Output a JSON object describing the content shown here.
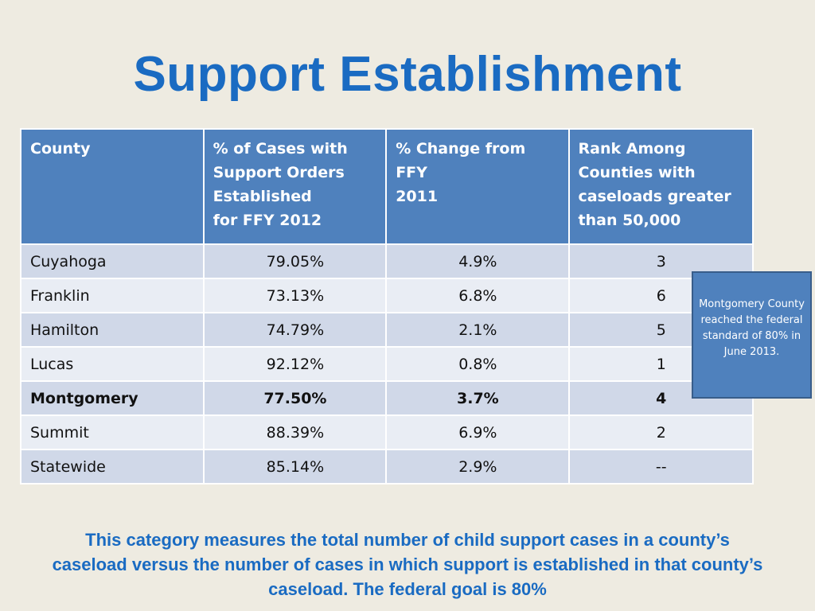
{
  "title": "Support Establishment",
  "table": {
    "headers": [
      "County",
      "% of Cases with Support Orders Established\nfor FFY 2012",
      "% Change from FFY 2011",
      "Rank Among Counties with caseloads greater than 50,000"
    ],
    "header_lines": [
      [
        "County"
      ],
      [
        "% of Cases with",
        "Support Orders",
        "Established",
        "for FFY 2012"
      ],
      [
        "% Change from FFY",
        "2011"
      ],
      [
        "Rank Among",
        "Counties with",
        "caseloads greater",
        "than 50,000"
      ]
    ],
    "rows": [
      {
        "county": "Cuyahoga",
        "pct": "79.05%",
        "change": "4.9%",
        "rank": "3"
      },
      {
        "county": "Franklin",
        "pct": "73.13%",
        "change": "6.8%",
        "rank": "6"
      },
      {
        "county": "Hamilton",
        "pct": "74.79%",
        "change": "2.1%",
        "rank": "5"
      },
      {
        "county": "Lucas",
        "pct": "92.12%",
        "change": "0.8%",
        "rank": "1"
      },
      {
        "county": "Montgomery",
        "pct": "77.50%",
        "change": "3.7%",
        "rank": "4"
      },
      {
        "county": "Summit",
        "pct": "88.39%",
        "change": "6.9%",
        "rank": "2"
      },
      {
        "county": "Statewide",
        "pct": "85.14%",
        "change": "2.9%",
        "rank": "--"
      }
    ]
  },
  "callout": "Montgomery County  reached the federal standard of 80% in June 2013.",
  "footnote": "This category measures the total number of child support cases in a county’s caseload  versus the number of cases in which support is established in that county’s caseload. The federal goal is 80%",
  "colors": {
    "title": "#1a6bc2",
    "header_bg": "#4f81bd",
    "row_odd": "#d0d8e8",
    "row_even": "#e9edf4",
    "background": "#eeebe1"
  }
}
